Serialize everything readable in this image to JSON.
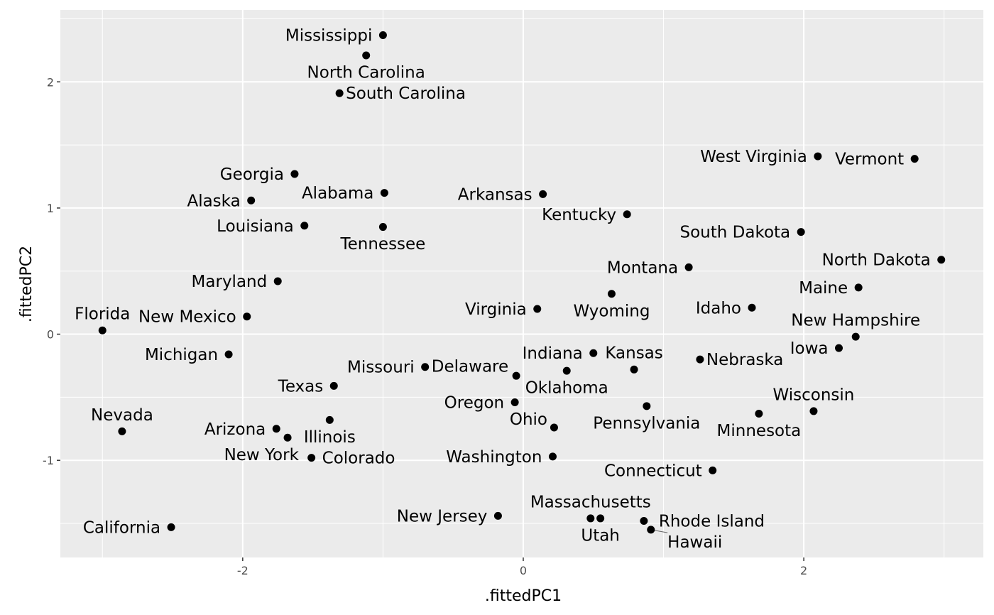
{
  "chart_data": {
    "type": "scatter",
    "xlabel": ".fittedPC1",
    "ylabel": ".fittedPC2",
    "xlim": [
      -3.3,
      3.28
    ],
    "ylim": [
      -1.77,
      2.57
    ],
    "x_ticks": [
      -2,
      0,
      2
    ],
    "y_ticks": [
      -1,
      0,
      1,
      2
    ],
    "grid": true,
    "panel_background": "#ebebeb",
    "point_color": "#000000",
    "points": [
      {
        "label": "Mississippi",
        "x": -1.0,
        "y": 2.37
      },
      {
        "label": "North Carolina",
        "x": -1.12,
        "y": 2.21
      },
      {
        "label": "South Carolina",
        "x": -1.31,
        "y": 1.91
      },
      {
        "label": "Georgia",
        "x": -1.63,
        "y": 1.27
      },
      {
        "label": "Alaska",
        "x": -1.94,
        "y": 1.06
      },
      {
        "label": "Alabama",
        "x": -0.99,
        "y": 1.12
      },
      {
        "label": "Louisiana",
        "x": -1.56,
        "y": 0.86
      },
      {
        "label": "Tennessee",
        "x": -1.0,
        "y": 0.85
      },
      {
        "label": "Arkansas",
        "x": 0.14,
        "y": 1.11
      },
      {
        "label": "Kentucky",
        "x": 0.74,
        "y": 0.95
      },
      {
        "label": "West Virginia",
        "x": 2.1,
        "y": 1.41
      },
      {
        "label": "Vermont",
        "x": 2.79,
        "y": 1.39
      },
      {
        "label": "South Dakota",
        "x": 1.98,
        "y": 0.81
      },
      {
        "label": "North Dakota",
        "x": 2.98,
        "y": 0.59
      },
      {
        "label": "Montana",
        "x": 1.18,
        "y": 0.53
      },
      {
        "label": "Maine",
        "x": 2.39,
        "y": 0.37
      },
      {
        "label": "Maryland",
        "x": -1.75,
        "y": 0.42
      },
      {
        "label": "Wyoming",
        "x": 0.63,
        "y": 0.32
      },
      {
        "label": "Idaho",
        "x": 1.63,
        "y": 0.21
      },
      {
        "label": "Virginia",
        "x": 0.1,
        "y": 0.2
      },
      {
        "label": "New Mexico",
        "x": -1.97,
        "y": 0.14
      },
      {
        "label": "Florida",
        "x": -3.0,
        "y": 0.03
      },
      {
        "label": "New Hampshire",
        "x": 2.37,
        "y": -0.02
      },
      {
        "label": "Iowa",
        "x": 2.25,
        "y": -0.11
      },
      {
        "label": "Michigan",
        "x": -2.1,
        "y": -0.16
      },
      {
        "label": "Indiana",
        "x": 0.5,
        "y": -0.15
      },
      {
        "label": "Nebraska",
        "x": 1.26,
        "y": -0.2
      },
      {
        "label": "Missouri",
        "x": -0.7,
        "y": -0.26
      },
      {
        "label": "Kansas",
        "x": 0.79,
        "y": -0.28
      },
      {
        "label": "Oklahoma",
        "x": 0.31,
        "y": -0.29
      },
      {
        "label": "Delaware",
        "x": -0.05,
        "y": -0.33
      },
      {
        "label": "Texas",
        "x": -1.35,
        "y": -0.41
      },
      {
        "label": "Oregon",
        "x": -0.06,
        "y": -0.54
      },
      {
        "label": "Pennsylvania",
        "x": 0.88,
        "y": -0.57
      },
      {
        "label": "Wisconsin",
        "x": 2.07,
        "y": -0.61
      },
      {
        "label": "Minnesota",
        "x": 1.68,
        "y": -0.63
      },
      {
        "label": "Illinois",
        "x": -1.38,
        "y": -0.68
      },
      {
        "label": "Arizona",
        "x": -1.76,
        "y": -0.75
      },
      {
        "label": "Nevada",
        "x": -2.86,
        "y": -0.77
      },
      {
        "label": "New York",
        "x": -1.68,
        "y": -0.82
      },
      {
        "label": "Ohio",
        "x": 0.22,
        "y": -0.74
      },
      {
        "label": "Colorado",
        "x": -1.51,
        "y": -0.98
      },
      {
        "label": "Washington",
        "x": 0.21,
        "y": -0.97
      },
      {
        "label": "Connecticut",
        "x": 1.35,
        "y": -1.08
      },
      {
        "label": "California",
        "x": -2.51,
        "y": -1.53
      },
      {
        "label": "New Jersey",
        "x": -0.18,
        "y": -1.44
      },
      {
        "label": "Massachusetts",
        "x": 0.48,
        "y": -1.46
      },
      {
        "label": "Utah",
        "x": 0.55,
        "y": -1.46
      },
      {
        "label": "Rhode Island",
        "x": 0.86,
        "y": -1.48
      },
      {
        "label": "Hawaii",
        "x": 0.91,
        "y": -1.55
      }
    ]
  }
}
